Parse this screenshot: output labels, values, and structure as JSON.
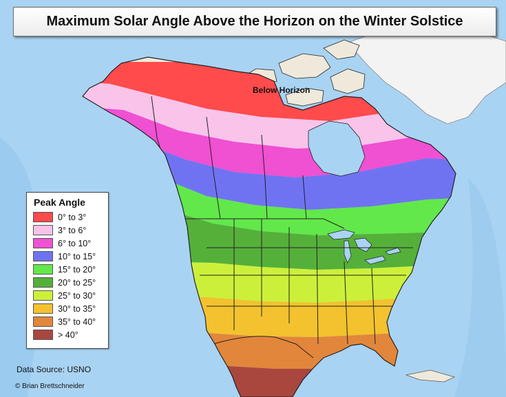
{
  "title": "Maximum Solar Angle Above the Horizon on the Winter Solstice",
  "legend": {
    "title": "Peak Angle",
    "items": [
      {
        "label": "0° to 3°",
        "color": "#ff4b4b"
      },
      {
        "label": "3° to 6°",
        "color": "#f9c3ea"
      },
      {
        "label": "6° to 10°",
        "color": "#f050d2"
      },
      {
        "label": "10° to 15°",
        "color": "#6f73f2"
      },
      {
        "label": "15° to 20°",
        "color": "#62e84a"
      },
      {
        "label": "20° to 25°",
        "color": "#55b03a"
      },
      {
        "label": "25° to 30°",
        "color": "#ccf03a"
      },
      {
        "label": "30° to 35°",
        "color": "#f3c22e"
      },
      {
        "label": "35° to 40°",
        "color": "#e2863c"
      },
      {
        "label": "> 40°",
        "color": "#a9473f"
      }
    ]
  },
  "annotations": {
    "below_horizon": "Below Horizon"
  },
  "footer": {
    "source": "Data Source: USNO",
    "credit": "© Brian Brettschneider"
  },
  "colors": {
    "ocean": "#a9d3f2",
    "greenland_ice": "#f3f3f3",
    "land_below_horizon": "#efe9dc",
    "boundaries": "#222222"
  }
}
